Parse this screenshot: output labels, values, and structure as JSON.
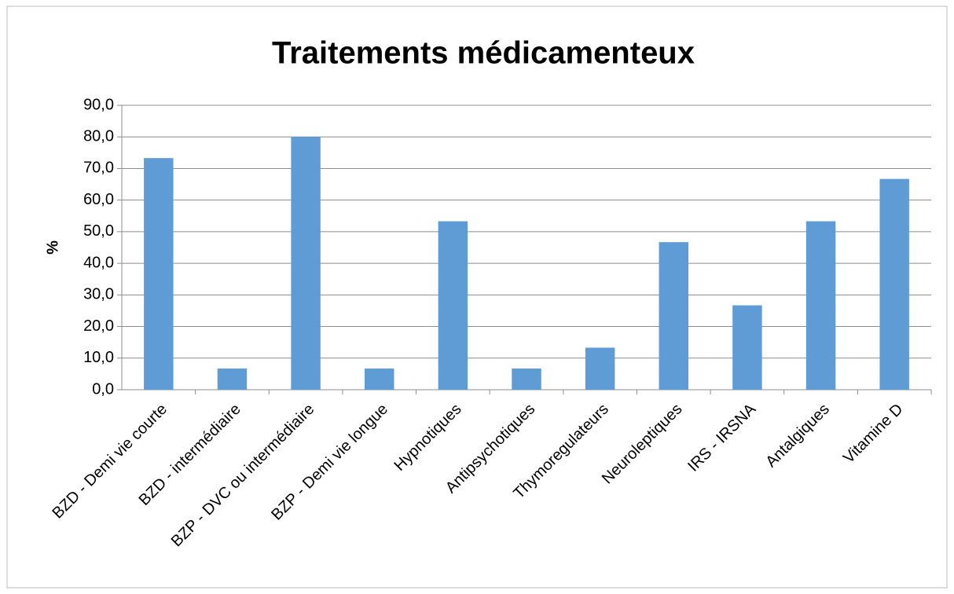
{
  "chart_data": {
    "type": "bar",
    "title": "Traitements médicamenteux",
    "y_label": "%",
    "categories": [
      "BZD - Demi vie courte",
      "BZD - intermédiaire",
      "BZP - DVC ou intermédiaire",
      "BZP - Demi vie longue",
      "Hypnotiques",
      "Antipsychotiques",
      "Thymoregulateurs",
      "Neuroleptiques",
      "IRS - IRSNA",
      "Antalgiques",
      "Vitamine D"
    ],
    "values": [
      73.3,
      6.7,
      80.0,
      6.7,
      53.3,
      6.7,
      13.3,
      46.7,
      26.7,
      53.3,
      66.7
    ],
    "color": "#5f9cd6",
    "ylim": [
      0,
      90
    ],
    "yticks": [
      {
        "value": 0,
        "label": "0,0"
      },
      {
        "value": 10,
        "label": "10,0"
      },
      {
        "value": 20,
        "label": "20,0"
      },
      {
        "value": 30,
        "label": "30,0"
      },
      {
        "value": 40,
        "label": "40,0"
      },
      {
        "value": 50,
        "label": "50,0"
      },
      {
        "value": 60,
        "label": "60,0"
      },
      {
        "value": 70,
        "label": "70,0"
      },
      {
        "value": 80,
        "label": "80,0"
      },
      {
        "value": 90,
        "label": "90,0"
      }
    ],
    "grid": true
  }
}
